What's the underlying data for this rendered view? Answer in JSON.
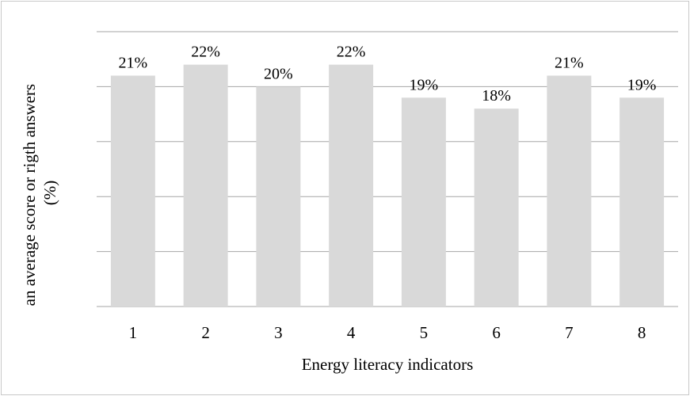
{
  "chart_data": {
    "type": "bar",
    "categories": [
      "1",
      "2",
      "3",
      "4",
      "5",
      "6",
      "7",
      "8"
    ],
    "values": [
      21,
      22,
      20,
      22,
      19,
      18,
      21,
      19
    ],
    "data_labels": [
      "21%",
      "22%",
      "20%",
      "22%",
      "19%",
      "18%",
      "21%",
      "19%"
    ],
    "title": "",
    "xlabel": "Energy literacy indicators",
    "ylabel": "an average score or rigth answers (%)",
    "ylabel_lines": [
      "an average score or rigth answers",
      "(%)"
    ],
    "ylim": [
      0,
      25
    ],
    "y_tick_labels_shown": false,
    "grid": true,
    "legend": "none",
    "bar_color": "#d9d9d9",
    "grid_color": "#a6a6a6"
  }
}
